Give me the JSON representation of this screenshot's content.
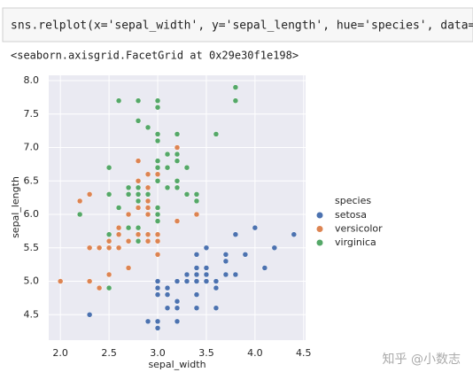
{
  "code": "sns.relplot(x='sepal_width', y='sepal_length', hue='species', data=iris)",
  "output": "<seaborn.axisgrid.FacetGrid at 0x29e30f1e198>",
  "watermark": "知乎 @小数志",
  "chart_data": {
    "type": "scatter",
    "x_label": "sepal_width",
    "y_label": "sepal_length",
    "legend_title": "species",
    "legend": "right",
    "xlim": [
      1.88,
      4.52
    ],
    "ylim": [
      4.12,
      8.08
    ],
    "xticks": [
      {
        "value": 2,
        "label": "2.0"
      },
      2.5,
      {
        "value": 3,
        "label": "3.0"
      },
      3.5,
      {
        "value": 4,
        "label": "4.0"
      },
      4.5
    ],
    "yticks": [
      4.5,
      {
        "value": 5,
        "label": "5.0"
      },
      5.5,
      {
        "value": 6,
        "label": "6.0"
      },
      6.5,
      {
        "value": 7,
        "label": "7.0"
      },
      7.5,
      {
        "value": 8,
        "label": "8.0"
      }
    ],
    "grid": true,
    "series": [
      {
        "name": "setosa",
        "color": "#4c72b0",
        "x": [
          3.5,
          3.0,
          3.2,
          3.1,
          3.6,
          3.9,
          3.4,
          3.4,
          2.9,
          3.1,
          3.7,
          3.4,
          3.0,
          3.0,
          4.0,
          4.4,
          3.9,
          3.5,
          3.8,
          3.8,
          3.4,
          3.7,
          3.6,
          3.3,
          3.4,
          3.0,
          3.4,
          3.5,
          3.4,
          3.2,
          3.1,
          3.4,
          4.1,
          4.2,
          3.1,
          3.2,
          3.5,
          3.6,
          3.0,
          3.4,
          3.5,
          2.3,
          3.2,
          3.5,
          3.8,
          3.0,
          3.8,
          3.2,
          3.7,
          3.3
        ],
        "values": [
          5.1,
          4.9,
          4.7,
          4.6,
          5.0,
          5.4,
          4.6,
          5.0,
          4.4,
          4.9,
          5.4,
          4.8,
          4.8,
          4.3,
          5.8,
          5.7,
          5.4,
          5.1,
          5.7,
          5.1,
          5.4,
          5.1,
          4.6,
          5.1,
          4.8,
          5.0,
          5.0,
          5.2,
          5.2,
          4.7,
          4.8,
          5.4,
          5.2,
          5.5,
          4.9,
          5.0,
          5.5,
          4.9,
          4.4,
          5.1,
          5.0,
          4.5,
          4.4,
          5.0,
          5.1,
          4.8,
          5.1,
          4.6,
          5.3,
          5.0
        ]
      },
      {
        "name": "versicolor",
        "color": "#dd8452",
        "x": [
          3.2,
          3.2,
          3.1,
          2.3,
          2.8,
          2.8,
          3.3,
          2.4,
          2.9,
          2.7,
          2.0,
          3.0,
          2.2,
          2.9,
          2.9,
          3.1,
          3.0,
          2.7,
          2.2,
          2.5,
          3.2,
          2.8,
          2.5,
          2.8,
          2.9,
          3.0,
          2.8,
          3.0,
          2.9,
          2.6,
          2.4,
          2.4,
          2.7,
          2.7,
          3.0,
          3.4,
          3.1,
          2.3,
          3.0,
          2.5,
          2.6,
          3.0,
          2.6,
          2.3,
          2.7,
          3.0,
          2.9,
          2.9,
          2.5,
          2.8
        ],
        "values": [
          7.0,
          6.4,
          6.9,
          5.5,
          6.5,
          5.7,
          6.3,
          4.9,
          6.6,
          5.2,
          5.0,
          5.9,
          6.0,
          6.1,
          5.6,
          6.7,
          5.6,
          5.8,
          6.2,
          5.6,
          5.9,
          6.1,
          6.3,
          6.1,
          6.4,
          6.6,
          6.8,
          6.7,
          6.0,
          5.7,
          5.5,
          5.5,
          5.8,
          6.0,
          5.4,
          6.0,
          6.7,
          6.3,
          5.6,
          5.5,
          5.5,
          6.1,
          5.8,
          5.0,
          5.6,
          5.7,
          5.7,
          6.2,
          5.1,
          5.7
        ]
      },
      {
        "name": "virginica",
        "color": "#55a868",
        "x": [
          3.3,
          2.7,
          3.0,
          2.9,
          3.0,
          3.0,
          2.5,
          2.9,
          2.5,
          3.6,
          3.2,
          2.7,
          3.0,
          2.5,
          2.8,
          3.2,
          3.0,
          3.8,
          2.6,
          2.2,
          3.2,
          2.8,
          2.8,
          2.7,
          3.3,
          3.2,
          2.8,
          3.0,
          2.8,
          3.0,
          2.8,
          3.8,
          2.8,
          2.8,
          2.6,
          3.0,
          3.4,
          3.1,
          3.0,
          3.1,
          3.1,
          3.1,
          2.7,
          3.2,
          3.3,
          3.0,
          2.5,
          3.0,
          3.4,
          3.0
        ],
        "values": [
          6.3,
          5.8,
          7.1,
          6.3,
          6.5,
          7.6,
          4.9,
          7.3,
          6.7,
          7.2,
          6.5,
          6.4,
          6.8,
          5.7,
          5.8,
          6.4,
          6.5,
          7.7,
          7.7,
          6.0,
          6.9,
          5.6,
          7.7,
          6.3,
          6.7,
          7.2,
          6.2,
          6.1,
          6.4,
          7.2,
          7.4,
          7.9,
          6.4,
          6.3,
          6.1,
          7.7,
          6.3,
          6.4,
          6.0,
          6.9,
          6.7,
          6.9,
          5.8,
          6.8,
          6.7,
          6.7,
          6.3,
          6.5,
          6.2,
          5.9
        ]
      }
    ]
  }
}
